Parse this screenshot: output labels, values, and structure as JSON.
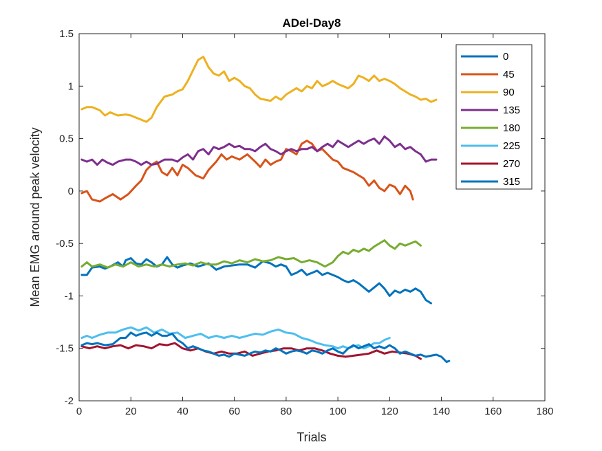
{
  "chart_data": {
    "type": "line",
    "title": "ADel-Day8",
    "xlabel": "Trials",
    "ylabel": "Mean EMG around peak velocity",
    "xlim": [
      0,
      180
    ],
    "ylim": [
      -2,
      1.5
    ],
    "xticks": [
      0,
      20,
      40,
      60,
      80,
      100,
      120,
      140,
      160,
      180
    ],
    "yticks": [
      -2,
      -1.5,
      -1,
      -0.5,
      0,
      0.5,
      1,
      1.5
    ],
    "grid": false,
    "legend_position": "top-right",
    "series": [
      {
        "name": "0",
        "color": "#0072BD",
        "x": [
          1,
          3,
          5,
          8,
          10,
          12,
          15,
          17,
          18,
          20,
          22,
          24,
          26,
          28,
          30,
          32,
          34,
          36,
          38,
          40,
          43,
          46,
          50,
          53,
          56,
          59,
          62,
          65,
          68,
          71,
          74,
          76,
          78,
          80,
          82,
          84,
          86,
          88,
          90,
          92,
          94,
          96,
          98,
          100,
          102,
          104,
          106,
          108,
          110,
          112,
          114,
          116,
          118,
          120,
          122,
          124,
          126,
          128,
          130,
          132,
          134,
          136
        ],
        "y": [
          -0.8,
          -0.8,
          -0.73,
          -0.72,
          -0.74,
          -0.72,
          -0.68,
          -0.72,
          -0.66,
          -0.64,
          -0.69,
          -0.7,
          -0.65,
          -0.68,
          -0.72,
          -0.7,
          -0.63,
          -0.7,
          -0.73,
          -0.71,
          -0.69,
          -0.72,
          -0.69,
          -0.75,
          -0.72,
          -0.71,
          -0.7,
          -0.7,
          -0.73,
          -0.67,
          -0.69,
          -0.72,
          -0.7,
          -0.72,
          -0.8,
          -0.78,
          -0.75,
          -0.8,
          -0.78,
          -0.76,
          -0.8,
          -0.78,
          -0.8,
          -0.82,
          -0.85,
          -0.87,
          -0.85,
          -0.88,
          -0.92,
          -0.96,
          -0.92,
          -0.88,
          -0.93,
          -1.0,
          -0.95,
          -0.97,
          -0.94,
          -0.96,
          -0.93,
          -0.96,
          -1.04,
          -1.07
        ]
      },
      {
        "name": "45",
        "color": "#D95319",
        "x": [
          1,
          3,
          5,
          8,
          10,
          13,
          16,
          19,
          22,
          24,
          26,
          28,
          30,
          32,
          34,
          36,
          38,
          40,
          42,
          45,
          48,
          50,
          53,
          55,
          57,
          59,
          62,
          65,
          68,
          70,
          72,
          74,
          76,
          78,
          80,
          82,
          84,
          86,
          88,
          90,
          92,
          94,
          96,
          98,
          100,
          102,
          104,
          106,
          108,
          110,
          112,
          114,
          116,
          118,
          120,
          122,
          124,
          126,
          128,
          129
        ],
        "y": [
          -0.02,
          0.0,
          -0.08,
          -0.1,
          -0.07,
          -0.03,
          -0.08,
          -0.03,
          0.05,
          0.1,
          0.2,
          0.25,
          0.28,
          0.18,
          0.15,
          0.22,
          0.15,
          0.25,
          0.22,
          0.15,
          0.12,
          0.2,
          0.28,
          0.35,
          0.3,
          0.33,
          0.3,
          0.35,
          0.28,
          0.23,
          0.3,
          0.25,
          0.28,
          0.3,
          0.4,
          0.38,
          0.35,
          0.45,
          0.48,
          0.45,
          0.38,
          0.4,
          0.35,
          0.3,
          0.28,
          0.22,
          0.2,
          0.18,
          0.15,
          0.12,
          0.05,
          0.1,
          0.03,
          0.0,
          0.06,
          0.04,
          -0.03,
          0.05,
          0.0,
          -0.08
        ]
      },
      {
        "name": "90",
        "color": "#EDB120",
        "x": [
          1,
          3,
          5,
          8,
          10,
          12,
          15,
          18,
          20,
          22,
          24,
          26,
          28,
          30,
          33,
          36,
          38,
          40,
          42,
          44,
          46,
          48,
          50,
          52,
          54,
          56,
          58,
          60,
          62,
          64,
          66,
          68,
          70,
          72,
          74,
          76,
          78,
          80,
          82,
          84,
          86,
          88,
          90,
          92,
          94,
          96,
          98,
          100,
          102,
          104,
          106,
          108,
          110,
          112,
          114,
          116,
          118,
          120,
          122,
          124,
          126,
          128,
          130,
          132,
          134,
          136,
          138
        ],
        "y": [
          0.78,
          0.8,
          0.8,
          0.77,
          0.72,
          0.75,
          0.72,
          0.73,
          0.72,
          0.7,
          0.68,
          0.66,
          0.7,
          0.8,
          0.9,
          0.92,
          0.95,
          0.97,
          1.05,
          1.15,
          1.25,
          1.28,
          1.18,
          1.12,
          1.1,
          1.14,
          1.05,
          1.08,
          1.05,
          1.0,
          0.98,
          0.92,
          0.88,
          0.87,
          0.86,
          0.9,
          0.87,
          0.92,
          0.95,
          0.98,
          0.95,
          1.0,
          0.98,
          1.05,
          1.0,
          1.02,
          1.05,
          1.02,
          1.0,
          0.98,
          1.02,
          1.1,
          1.08,
          1.05,
          1.1,
          1.05,
          1.07,
          1.05,
          1.02,
          0.98,
          0.95,
          0.92,
          0.9,
          0.87,
          0.88,
          0.85,
          0.87
        ]
      },
      {
        "name": "135",
        "color": "#7E2F8E",
        "x": [
          1,
          3,
          5,
          7,
          9,
          11,
          13,
          15,
          18,
          20,
          22,
          24,
          26,
          28,
          30,
          33,
          36,
          38,
          40,
          42,
          44,
          46,
          48,
          50,
          52,
          54,
          56,
          58,
          60,
          62,
          64,
          66,
          68,
          70,
          72,
          74,
          76,
          78,
          80,
          82,
          84,
          86,
          88,
          90,
          92,
          94,
          96,
          98,
          100,
          102,
          104,
          106,
          108,
          110,
          112,
          114,
          116,
          118,
          120,
          122,
          124,
          126,
          128,
          130,
          132,
          134,
          136,
          138
        ],
        "y": [
          0.3,
          0.28,
          0.3,
          0.25,
          0.3,
          0.27,
          0.25,
          0.28,
          0.3,
          0.3,
          0.28,
          0.25,
          0.28,
          0.25,
          0.26,
          0.3,
          0.3,
          0.28,
          0.32,
          0.35,
          0.3,
          0.38,
          0.4,
          0.35,
          0.42,
          0.4,
          0.42,
          0.45,
          0.42,
          0.43,
          0.4,
          0.4,
          0.38,
          0.42,
          0.45,
          0.4,
          0.38,
          0.35,
          0.38,
          0.4,
          0.38,
          0.4,
          0.4,
          0.42,
          0.38,
          0.42,
          0.45,
          0.42,
          0.48,
          0.45,
          0.42,
          0.45,
          0.48,
          0.45,
          0.48,
          0.5,
          0.45,
          0.52,
          0.48,
          0.42,
          0.45,
          0.4,
          0.42,
          0.38,
          0.35,
          0.28,
          0.3,
          0.3
        ]
      },
      {
        "name": "180",
        "color": "#77AC30",
        "x": [
          1,
          3,
          5,
          8,
          11,
          14,
          17,
          20,
          23,
          26,
          29,
          32,
          35,
          38,
          41,
          44,
          47,
          50,
          53,
          56,
          59,
          62,
          65,
          68,
          71,
          74,
          77,
          80,
          83,
          86,
          89,
          92,
          95,
          98,
          100,
          102,
          104,
          106,
          108,
          110,
          112,
          114,
          116,
          118,
          120,
          122,
          124,
          126,
          128,
          130,
          132
        ],
        "y": [
          -0.72,
          -0.68,
          -0.72,
          -0.7,
          -0.73,
          -0.7,
          -0.72,
          -0.68,
          -0.72,
          -0.7,
          -0.72,
          -0.7,
          -0.72,
          -0.7,
          -0.69,
          -0.71,
          -0.68,
          -0.7,
          -0.7,
          -0.67,
          -0.69,
          -0.66,
          -0.68,
          -0.65,
          -0.67,
          -0.66,
          -0.63,
          -0.65,
          -0.64,
          -0.68,
          -0.66,
          -0.68,
          -0.72,
          -0.68,
          -0.62,
          -0.58,
          -0.6,
          -0.56,
          -0.58,
          -0.55,
          -0.57,
          -0.53,
          -0.5,
          -0.47,
          -0.52,
          -0.55,
          -0.5,
          -0.52,
          -0.5,
          -0.48,
          -0.52
        ]
      },
      {
        "name": "225",
        "color": "#4DBEEE",
        "x": [
          1,
          3,
          5,
          8,
          11,
          14,
          17,
          20,
          23,
          26,
          29,
          32,
          35,
          38,
          41,
          44,
          47,
          50,
          53,
          56,
          59,
          62,
          65,
          68,
          71,
          74,
          77,
          80,
          83,
          86,
          89,
          92,
          95,
          98,
          100,
          102,
          104,
          106,
          108,
          110,
          112,
          114,
          116,
          118,
          120
        ],
        "y": [
          -1.4,
          -1.38,
          -1.4,
          -1.37,
          -1.35,
          -1.35,
          -1.32,
          -1.3,
          -1.33,
          -1.3,
          -1.35,
          -1.32,
          -1.36,
          -1.35,
          -1.4,
          -1.38,
          -1.36,
          -1.4,
          -1.38,
          -1.4,
          -1.38,
          -1.4,
          -1.38,
          -1.36,
          -1.37,
          -1.34,
          -1.32,
          -1.35,
          -1.36,
          -1.4,
          -1.42,
          -1.45,
          -1.47,
          -1.48,
          -1.5,
          -1.48,
          -1.5,
          -1.48,
          -1.47,
          -1.5,
          -1.48,
          -1.45,
          -1.45,
          -1.42,
          -1.4
        ]
      },
      {
        "name": "270",
        "color": "#A2142F",
        "x": [
          1,
          4,
          7,
          10,
          13,
          16,
          19,
          22,
          25,
          28,
          31,
          34,
          37,
          40,
          43,
          46,
          49,
          52,
          55,
          58,
          61,
          64,
          67,
          70,
          73,
          76,
          79,
          82,
          85,
          88,
          91,
          94,
          97,
          100,
          103,
          106,
          109,
          112,
          115,
          118,
          121,
          124,
          127,
          130,
          132
        ],
        "y": [
          -1.48,
          -1.5,
          -1.48,
          -1.5,
          -1.48,
          -1.47,
          -1.5,
          -1.47,
          -1.48,
          -1.5,
          -1.46,
          -1.47,
          -1.45,
          -1.5,
          -1.52,
          -1.5,
          -1.53,
          -1.55,
          -1.53,
          -1.55,
          -1.55,
          -1.53,
          -1.57,
          -1.55,
          -1.53,
          -1.52,
          -1.5,
          -1.5,
          -1.52,
          -1.5,
          -1.5,
          -1.52,
          -1.55,
          -1.57,
          -1.58,
          -1.57,
          -1.56,
          -1.55,
          -1.52,
          -1.55,
          -1.53,
          -1.54,
          -1.55,
          -1.57,
          -1.6
        ]
      },
      {
        "name": "315",
        "color": "#0072BD",
        "x": [
          1,
          3,
          5,
          7,
          10,
          13,
          16,
          18,
          20,
          22,
          24,
          26,
          28,
          30,
          32,
          34,
          36,
          38,
          40,
          42,
          44,
          46,
          48,
          50,
          52,
          54,
          56,
          58,
          60,
          62,
          64,
          66,
          68,
          70,
          72,
          74,
          76,
          78,
          80,
          82,
          84,
          86,
          88,
          90,
          92,
          94,
          96,
          98,
          100,
          102,
          104,
          106,
          108,
          110,
          112,
          114,
          116,
          118,
          120,
          122,
          124,
          126,
          128,
          130,
          132,
          134,
          136,
          138,
          140,
          142,
          143
        ],
        "y": [
          -1.47,
          -1.45,
          -1.46,
          -1.45,
          -1.47,
          -1.46,
          -1.4,
          -1.4,
          -1.35,
          -1.38,
          -1.36,
          -1.35,
          -1.38,
          -1.35,
          -1.38,
          -1.38,
          -1.36,
          -1.42,
          -1.45,
          -1.5,
          -1.48,
          -1.5,
          -1.52,
          -1.53,
          -1.55,
          -1.57,
          -1.56,
          -1.58,
          -1.55,
          -1.56,
          -1.57,
          -1.55,
          -1.53,
          -1.54,
          -1.52,
          -1.53,
          -1.5,
          -1.52,
          -1.55,
          -1.53,
          -1.52,
          -1.53,
          -1.55,
          -1.52,
          -1.53,
          -1.55,
          -1.52,
          -1.5,
          -1.53,
          -1.55,
          -1.5,
          -1.47,
          -1.5,
          -1.48,
          -1.46,
          -1.5,
          -1.48,
          -1.5,
          -1.47,
          -1.5,
          -1.55,
          -1.53,
          -1.55,
          -1.57,
          -1.56,
          -1.58,
          -1.57,
          -1.56,
          -1.58,
          -1.63,
          -1.62
        ]
      }
    ]
  }
}
